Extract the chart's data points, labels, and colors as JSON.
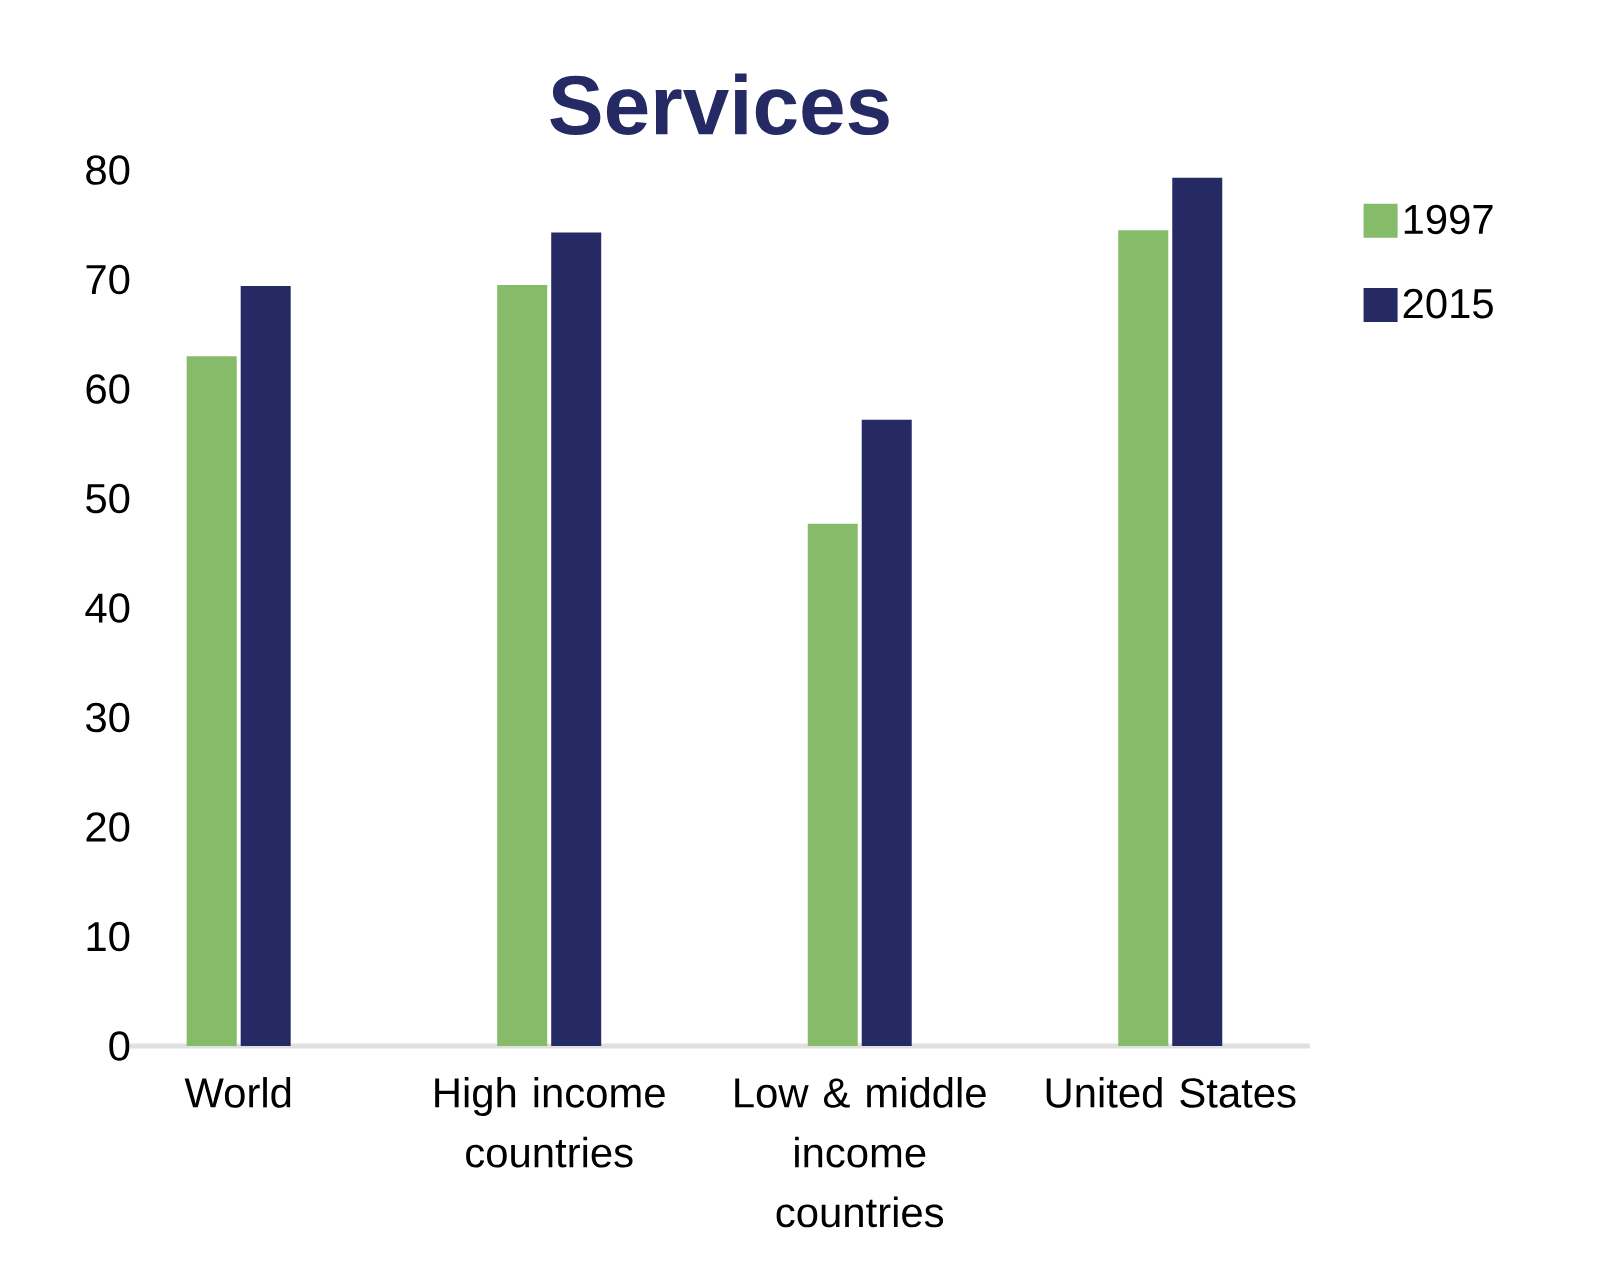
{
  "chart_data": {
    "type": "bar",
    "title": "Services",
    "categories": [
      "World",
      "High income countries",
      "Low & middle income countries",
      "United States"
    ],
    "series": [
      {
        "name": "1997",
        "color": "#86bb6a",
        "values": [
          63.0,
          69.5,
          47.7,
          74.5
        ]
      },
      {
        "name": "2015",
        "color": "#252a64",
        "values": [
          69.4,
          74.3,
          57.2,
          79.3
        ]
      }
    ],
    "ylim": [
      0,
      80
    ],
    "yticks": [
      0,
      10,
      20,
      30,
      40,
      50,
      60,
      70,
      80
    ],
    "legend": "right"
  }
}
